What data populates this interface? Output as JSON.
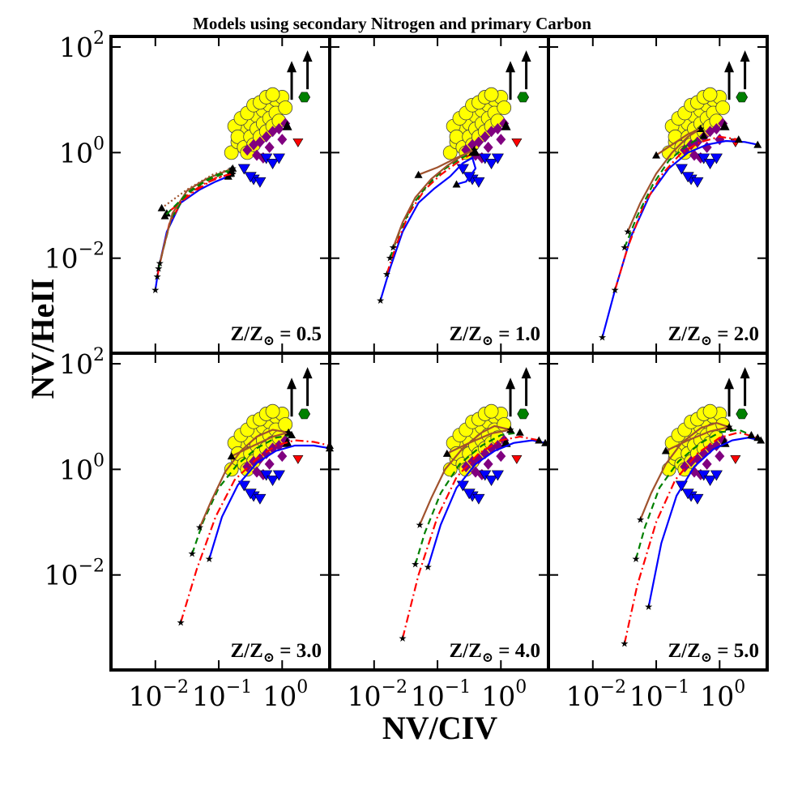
{
  "chart_data": {
    "type": "scatter",
    "title": "Models using secondary Nitrogen and primary Carbon",
    "xlabel": "NV/CIV",
    "ylabel": "NV/HeII",
    "x_scale": "log",
    "y_scale": "log",
    "xlim_log10": [
      -2.7,
      0.75
    ],
    "ylim_log10": [
      -3.8,
      2.2
    ],
    "x_ticks": [
      {
        "value": -2,
        "base": "10",
        "exp": "−2"
      },
      {
        "value": -1,
        "base": "10",
        "exp": "−1"
      },
      {
        "value": 0,
        "base": "10",
        "exp": "0"
      }
    ],
    "y_ticks": [
      {
        "value": 2,
        "base": "10",
        "exp": "2"
      },
      {
        "value": 0,
        "base": "10",
        "exp": "0"
      },
      {
        "value": -2,
        "base": "10",
        "exp": "−2"
      }
    ],
    "panel_label_prefix": "Z/Z",
    "panels": [
      {
        "label": "0.5",
        "series": [
          {
            "name": "blue-solid",
            "color": "#0000ff",
            "dash": "",
            "x": [
              -2.0,
              -1.95,
              -1.82,
              -1.6,
              -1.3,
              -1.05,
              -0.85
            ],
            "y": [
              -2.6,
              -2.2,
              -1.5,
              -0.95,
              -0.7,
              -0.55,
              -0.45
            ]
          },
          {
            "name": "red-dashdot",
            "color": "#ff0000",
            "dash": "10,4,2,4",
            "x": [
              -1.97,
              -1.9,
              -1.78,
              -1.55,
              -1.25,
              -1.0,
              -0.82
            ],
            "y": [
              -2.35,
              -1.95,
              -1.35,
              -0.85,
              -0.6,
              -0.48,
              -0.4
            ]
          },
          {
            "name": "green-dashed",
            "color": "#008000",
            "dash": "8,5",
            "x": [
              -1.95,
              -1.88,
              -1.75,
              -1.52,
              -1.22,
              -0.97,
              -0.8
            ],
            "y": [
              -2.2,
              -1.85,
              -1.25,
              -0.8,
              -0.55,
              -0.42,
              -0.35
            ]
          },
          {
            "name": "brown-solid",
            "color": "#a0522d",
            "dash": "",
            "x": [
              -1.93,
              -1.86,
              -1.73,
              -1.5,
              -1.2,
              -0.95,
              -0.78
            ],
            "y": [
              -2.1,
              -1.75,
              -1.15,
              -0.72,
              -0.5,
              -0.38,
              -0.3
            ]
          },
          {
            "name": "red-upper",
            "color": "#ff0000",
            "dash": "10,4,2,4",
            "x": [
              -0.78,
              -1.05,
              -1.4,
              -1.82
            ],
            "y": [
              -0.4,
              -0.48,
              -0.75,
              -1.15
            ]
          },
          {
            "name": "green-upper",
            "color": "#008000",
            "dash": "8,5",
            "x": [
              -0.8,
              -1.1,
              -1.45,
              -1.85
            ],
            "y": [
              -0.32,
              -0.45,
              -0.72,
              -1.2
            ]
          },
          {
            "name": "brown-dotted-upper",
            "color": "#a0522d",
            "dash": "2,3",
            "x": [
              -0.78,
              -1.1,
              -1.5,
              -1.9
            ],
            "y": [
              -0.3,
              -0.42,
              -0.7,
              -1.05
            ]
          }
        ]
      },
      {
        "label": "1.0",
        "series": [
          {
            "name": "blue-solid",
            "color": "#0000ff",
            "dash": "",
            "x": [
              -1.9,
              -1.75,
              -1.55,
              -1.3,
              -1.05,
              -0.8,
              -0.6,
              -0.45,
              -0.4,
              -0.55,
              -0.7
            ],
            "y": [
              -2.8,
              -2.2,
              -1.5,
              -0.95,
              -0.68,
              -0.45,
              -0.2,
              -0.1,
              -0.3,
              -0.55,
              -0.6
            ]
          },
          {
            "name": "red-dashdot",
            "color": "#ff0000",
            "dash": "10,4,2,4",
            "x": [
              -1.8,
              -1.65,
              -1.45,
              -1.2,
              -0.95,
              -0.7,
              -0.5,
              -0.4
            ],
            "y": [
              -2.3,
              -1.75,
              -1.15,
              -0.7,
              -0.42,
              -0.2,
              -0.05,
              0.0
            ]
          },
          {
            "name": "green-dashed",
            "color": "#008000",
            "dash": "8,5",
            "x": [
              -1.75,
              -1.6,
              -1.4,
              -1.15,
              -0.9,
              -0.65,
              -0.45
            ],
            "y": [
              -2.0,
              -1.5,
              -1.0,
              -0.6,
              -0.32,
              -0.12,
              0.0
            ]
          },
          {
            "name": "brown-solid",
            "color": "#a0522d",
            "dash": "",
            "x": [
              -1.7,
              -1.55,
              -1.35,
              -1.1,
              -0.85,
              -0.6,
              -0.42
            ],
            "y": [
              -1.8,
              -1.32,
              -0.85,
              -0.5,
              -0.25,
              -0.05,
              0.05
            ]
          },
          {
            "name": "brown-upper",
            "color": "#a0522d",
            "dash": "",
            "x": [
              -0.42,
              -0.7,
              -1.0,
              -1.3
            ],
            "y": [
              0.05,
              -0.1,
              -0.28,
              -0.42
            ]
          }
        ]
      },
      {
        "label": "2.0",
        "series": [
          {
            "name": "blue-solid",
            "color": "#0000ff",
            "dash": "",
            "x": [
              -1.85,
              -1.65,
              -1.4,
              -1.1,
              -0.8,
              -0.5,
              -0.2,
              0.1,
              0.4,
              0.6
            ],
            "y": [
              -3.5,
              -2.6,
              -1.6,
              -0.8,
              -0.3,
              0.0,
              0.15,
              0.22,
              0.2,
              0.15
            ]
          },
          {
            "name": "red-dashdot",
            "color": "#ff0000",
            "dash": "10,4,2,4",
            "x": [
              -1.65,
              -1.45,
              -1.2,
              -0.9,
              -0.6,
              -0.3,
              0.0,
              0.3
            ],
            "y": [
              -2.6,
              -1.8,
              -1.0,
              -0.4,
              0.0,
              0.2,
              0.3,
              0.25
            ]
          },
          {
            "name": "green-dashed",
            "color": "#008000",
            "dash": "8,5",
            "x": [
              -1.5,
              -1.3,
              -1.05,
              -0.8,
              -0.5,
              -0.25
            ],
            "y": [
              -1.8,
              -1.2,
              -0.6,
              -0.15,
              0.15,
              0.32
            ]
          },
          {
            "name": "brown-solid",
            "color": "#a0522d",
            "dash": "",
            "x": [
              -1.45,
              -1.25,
              -1.0,
              -0.75,
              -0.5,
              -0.3
            ],
            "y": [
              -1.5,
              -0.95,
              -0.4,
              0.0,
              0.3,
              0.45
            ]
          },
          {
            "name": "brown-upper",
            "color": "#a0522d",
            "dash": "",
            "x": [
              -0.3,
              -0.5,
              -0.75,
              -1.0
            ],
            "y": [
              0.45,
              0.35,
              0.15,
              -0.05
            ]
          }
        ]
      },
      {
        "label": "3.0",
        "series": [
          {
            "name": "blue-solid",
            "color": "#0000ff",
            "dash": "",
            "x": [
              -1.15,
              -0.95,
              -0.7,
              -0.4,
              -0.1,
              0.2,
              0.5,
              0.75
            ],
            "y": [
              -1.7,
              -0.9,
              -0.3,
              0.12,
              0.35,
              0.45,
              0.45,
              0.4
            ]
          },
          {
            "name": "red-dashdot",
            "color": "#ff0000",
            "dash": "10,4,2,4",
            "x": [
              -1.6,
              -1.35,
              -1.05,
              -0.75,
              -0.4,
              -0.1,
              0.2,
              0.5,
              0.75
            ],
            "y": [
              -2.9,
              -1.9,
              -0.9,
              -0.2,
              0.2,
              0.45,
              0.55,
              0.52,
              0.45
            ]
          },
          {
            "name": "green-dashed",
            "color": "#008000",
            "dash": "8,5",
            "x": [
              -1.42,
              -1.25,
              -1.0,
              -0.7,
              -0.4,
              -0.1,
              0.15
            ],
            "y": [
              -1.6,
              -1.0,
              -0.35,
              0.1,
              0.4,
              0.6,
              0.65
            ]
          },
          {
            "name": "brown-solid",
            "color": "#a0522d",
            "dash": "",
            "x": [
              -1.3,
              -1.12,
              -0.9,
              -0.65,
              -0.4,
              -0.15,
              0.1
            ],
            "y": [
              -1.1,
              -0.6,
              -0.05,
              0.35,
              0.62,
              0.75,
              0.7
            ]
          },
          {
            "name": "brown-upper",
            "color": "#a0522d",
            "dash": "",
            "x": [
              0.1,
              -0.15,
              -0.45,
              -0.8
            ],
            "y": [
              0.7,
              0.62,
              0.45,
              0.25
            ]
          }
        ]
      },
      {
        "label": "4.0",
        "series": [
          {
            "name": "blue-solid",
            "color": "#0000ff",
            "dash": "",
            "x": [
              -1.15,
              -0.95,
              -0.7,
              -0.4,
              -0.1,
              0.2,
              0.5,
              0.7
            ],
            "y": [
              -1.85,
              -1.05,
              -0.35,
              0.1,
              0.35,
              0.5,
              0.55,
              0.5
            ]
          },
          {
            "name": "red-dashdot",
            "color": "#ff0000",
            "dash": "10,4,2,4",
            "x": [
              -1.55,
              -1.3,
              -1.0,
              -0.7,
              -0.35,
              0.0,
              0.3,
              0.6
            ],
            "y": [
              -3.2,
              -2.0,
              -0.9,
              -0.15,
              0.3,
              0.55,
              0.62,
              0.55
            ]
          },
          {
            "name": "green-dashed",
            "color": "#008000",
            "dash": "8,5",
            "x": [
              -1.35,
              -1.2,
              -0.95,
              -0.65,
              -0.3,
              0.0,
              0.3
            ],
            "y": [
              -1.8,
              -1.2,
              -0.45,
              0.1,
              0.45,
              0.65,
              0.7
            ]
          },
          {
            "name": "brown-solid",
            "color": "#a0522d",
            "dash": "",
            "x": [
              -1.28,
              -1.1,
              -0.88,
              -0.6,
              -0.3,
              -0.1,
              0.15
            ],
            "y": [
              -1.05,
              -0.55,
              0.0,
              0.4,
              0.7,
              0.82,
              0.75
            ]
          },
          {
            "name": "brown-upper",
            "color": "#a0522d",
            "dash": "",
            "x": [
              0.15,
              -0.15,
              -0.5,
              -0.85
            ],
            "y": [
              0.75,
              0.68,
              0.5,
              0.3
            ]
          }
        ]
      },
      {
        "label": "5.0",
        "series": [
          {
            "name": "blue-solid",
            "color": "#0000ff",
            "dash": "",
            "x": [
              -1.12,
              -0.92,
              -0.68,
              -0.4,
              -0.1,
              0.2,
              0.45,
              0.65
            ],
            "y": [
              -2.6,
              -1.4,
              -0.5,
              0.05,
              0.38,
              0.55,
              0.6,
              0.55
            ]
          },
          {
            "name": "red-dashdot",
            "color": "#ff0000",
            "dash": "10,4,2,4",
            "x": [
              -1.5,
              -1.3,
              -1.0,
              -0.7,
              -0.35,
              0.0,
              0.3,
              0.6
            ],
            "y": [
              -3.3,
              -2.2,
              -1.0,
              -0.2,
              0.3,
              0.6,
              0.7,
              0.6
            ]
          },
          {
            "name": "green-dashed",
            "color": "#008000",
            "dash": "8,5",
            "x": [
              -1.32,
              -1.18,
              -0.95,
              -0.65,
              -0.3,
              0.0,
              0.3,
              0.5
            ],
            "y": [
              -1.7,
              -1.1,
              -0.35,
              0.15,
              0.5,
              0.7,
              0.75,
              0.65
            ]
          },
          {
            "name": "brown-solid",
            "color": "#a0522d",
            "dash": "",
            "x": [
              -1.25,
              -1.08,
              -0.85,
              -0.6,
              -0.3,
              -0.05,
              0.15
            ],
            "y": [
              -0.95,
              -0.45,
              0.1,
              0.5,
              0.78,
              0.88,
              0.8
            ]
          },
          {
            "name": "brown-upper",
            "color": "#a0522d",
            "dash": "",
            "x": [
              0.15,
              -0.15,
              -0.5,
              -0.85
            ],
            "y": [
              0.8,
              0.72,
              0.55,
              0.35
            ]
          }
        ]
      }
    ],
    "observations": {
      "yellow_circles": [
        [
          -0.8,
          0.0
        ],
        [
          -0.7,
          0.2
        ],
        [
          -0.6,
          0.4
        ],
        [
          -0.5,
          0.55
        ],
        [
          -0.4,
          0.7
        ],
        [
          -0.3,
          0.8
        ],
        [
          -0.2,
          0.9
        ],
        [
          -0.1,
          1.0
        ],
        [
          0.0,
          1.05
        ],
        [
          -0.75,
          0.5
        ],
        [
          -0.65,
          0.65
        ],
        [
          -0.55,
          0.75
        ],
        [
          -0.45,
          0.9
        ],
        [
          -0.35,
          0.95
        ],
        [
          -0.25,
          1.05
        ],
        [
          -0.15,
          1.1
        ],
        [
          -0.7,
          0.3
        ],
        [
          -0.6,
          0.1
        ],
        [
          -0.5,
          0.3
        ],
        [
          -0.4,
          0.45
        ],
        [
          -0.3,
          0.55
        ],
        [
          -0.2,
          0.65
        ],
        [
          -0.1,
          0.75
        ],
        [
          -0.55,
          0.0
        ],
        [
          -0.45,
          0.15
        ],
        [
          -0.35,
          0.3
        ],
        [
          -0.25,
          0.4
        ],
        [
          -0.15,
          0.5
        ],
        [
          -0.05,
          0.6
        ],
        [
          0.05,
          0.85
        ]
      ],
      "purple_diamonds": [
        [
          -0.55,
          0.05
        ],
        [
          -0.45,
          0.15
        ],
        [
          -0.35,
          0.2
        ],
        [
          -0.25,
          0.3
        ],
        [
          -0.15,
          0.4
        ],
        [
          -0.05,
          0.45
        ],
        [
          0.05,
          0.55
        ],
        [
          -0.4,
          -0.05
        ],
        [
          -0.2,
          0.1
        ],
        [
          0.0,
          0.25
        ],
        [
          -0.3,
          -0.1
        ]
      ],
      "blue_triangles_down": [
        [
          -0.6,
          -0.3
        ],
        [
          -0.45,
          -0.5
        ],
        [
          -0.35,
          -0.55
        ],
        [
          -0.25,
          -0.1
        ],
        [
          -0.15,
          -0.2
        ],
        [
          -0.05,
          -0.1
        ],
        [
          -0.5,
          -0.45
        ]
      ],
      "red_triangle_down": [
        [
          0.25,
          0.2
        ]
      ],
      "green_hexagon": [
        [
          0.35,
          1.05
        ]
      ],
      "black_triangle_up": [
        [
          0.08,
          0.5
        ]
      ],
      "black_arrows": [
        [
          0.15,
          1.0
        ],
        [
          0.4,
          1.2
        ]
      ]
    }
  }
}
